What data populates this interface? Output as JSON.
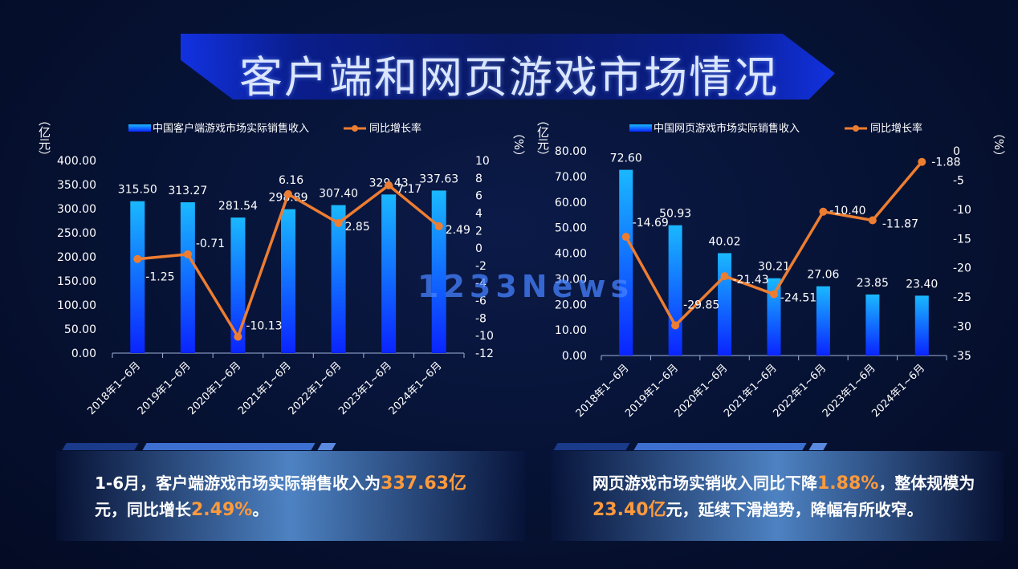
{
  "title": "客户端和网页游戏市场情况",
  "watermark": "1233News",
  "colors": {
    "bar_top": "#1ab8ff",
    "bar_bottom": "#0a24ff",
    "line": "#ed7d31",
    "text": "#ffffff",
    "highlight": "#ff9a3c"
  },
  "chart_data": [
    {
      "type": "bar",
      "legend": {
        "bar_label": "中国客户端游戏市场实际销售收入",
        "line_label": "同比增长率"
      },
      "categories": [
        "2018年1~6月",
        "2019年1~6月",
        "2020年1~6月",
        "2021年1~6月",
        "2022年1~6月",
        "2023年1~6月",
        "2024年1~6月"
      ],
      "series": [
        {
          "name": "中国客户端游戏市场实际销售收入",
          "type": "bar",
          "axis": "left",
          "values": [
            315.5,
            313.27,
            281.54,
            298.89,
            307.4,
            329.43,
            337.63
          ],
          "labels": [
            "315.50",
            "313.27",
            "281.54",
            "298.89",
            "307.40",
            "329.43",
            "337.63"
          ]
        },
        {
          "name": "同比增长率",
          "type": "line",
          "axis": "right",
          "values": [
            -1.25,
            -0.71,
            -10.13,
            6.16,
            2.85,
            7.17,
            2.49
          ],
          "labels": [
            "-1.25",
            "-0.71",
            "-10.13",
            "6.16",
            "2.85",
            "7.17",
            "2.49"
          ]
        }
      ],
      "ylabel": "亿元",
      "y2label": "%",
      "ylim": [
        0,
        400
      ],
      "y2lim": [
        -12,
        10
      ],
      "yticks": [
        "400.00",
        "350.00",
        "300.00",
        "250.00",
        "200.00",
        "150.00",
        "100.00",
        "50.00",
        "0.00"
      ],
      "y2ticks": [
        "10",
        "8",
        "6",
        "4",
        "2",
        "0",
        "-2",
        "-4",
        "-6",
        "-8",
        "-10",
        "-12"
      ],
      "legend_position": "top"
    },
    {
      "type": "bar",
      "legend": {
        "bar_label": "中国网页游戏市场实际销售收入",
        "line_label": "同比增长率"
      },
      "categories": [
        "2018年1~6月",
        "2019年1~6月",
        "2020年1~6月",
        "2021年1~6月",
        "2022年1~6月",
        "2023年1~6月",
        "2024年1~6月"
      ],
      "series": [
        {
          "name": "中国网页游戏市场实际销售收入",
          "type": "bar",
          "axis": "left",
          "values": [
            72.6,
            50.93,
            40.02,
            30.21,
            27.06,
            23.85,
            23.4
          ],
          "labels": [
            "72.60",
            "50.93",
            "40.02",
            "30.21",
            "27.06",
            "23.85",
            "23.40"
          ]
        },
        {
          "name": "同比增长率",
          "type": "line",
          "axis": "right",
          "values": [
            -14.69,
            -29.85,
            -21.43,
            -24.51,
            -10.4,
            -11.87,
            -1.88
          ],
          "labels": [
            "-14.69",
            "-29.85",
            "-21.43",
            "-24.51",
            "-10.40",
            "-11.87",
            "-1.88"
          ]
        }
      ],
      "ylabel": "亿元",
      "y2label": "%",
      "ylim": [
        0,
        80
      ],
      "y2lim": [
        -35,
        0
      ],
      "yticks": [
        "80.00",
        "70.00",
        "60.00",
        "50.00",
        "40.00",
        "30.00",
        "20.00",
        "10.00",
        "0.00"
      ],
      "y2ticks": [
        "0",
        "-5",
        "-10",
        "-15",
        "-20",
        "-25",
        "-30",
        "-35"
      ],
      "legend_position": "top"
    }
  ],
  "summaries": [
    {
      "text_1": "1-6月，客户端游戏市场实际销售收入为",
      "highlight_1": "337.63亿",
      "text_2": "元，同比增长",
      "highlight_2": "2.49%",
      "text_3": "。"
    },
    {
      "text_1": "网页游戏市场实销收入同比下降",
      "highlight_1": "1.88%",
      "text_2": "，整体规模为",
      "highlight_2": "23.40亿",
      "text_3": "元，延续下滑趋势，降幅有所收窄。"
    }
  ]
}
